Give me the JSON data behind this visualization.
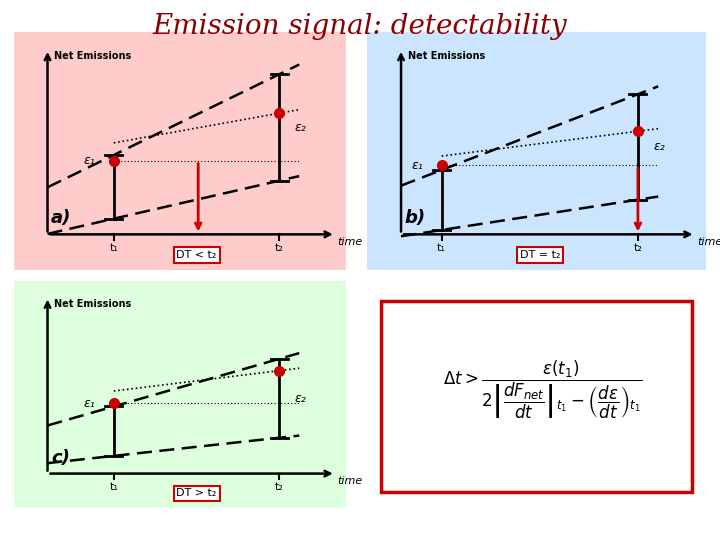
{
  "title": "Emission signal: detectability",
  "title_color": "#8B0000",
  "title_fontsize": 20,
  "bg_color": "#ffffff",
  "panel_a_bg": "#FFCCCC",
  "panel_b_bg": "#CCE5FF",
  "panel_c_bg": "#DDFFDD",
  "axis_label": "Net Emissions",
  "time_label": "time",
  "t1_label": "t₁",
  "t2_label": "t₂",
  "eps1_label": "ε₁",
  "eps2_label": "ε₂",
  "dt_lt": "DT < t₂",
  "dt_eq": "DT = t₂",
  "dt_gt": "DT > t₂",
  "red_dot_color": "#CC0000",
  "red_line_color": "#CC0000",
  "box_color": "#CC0000"
}
